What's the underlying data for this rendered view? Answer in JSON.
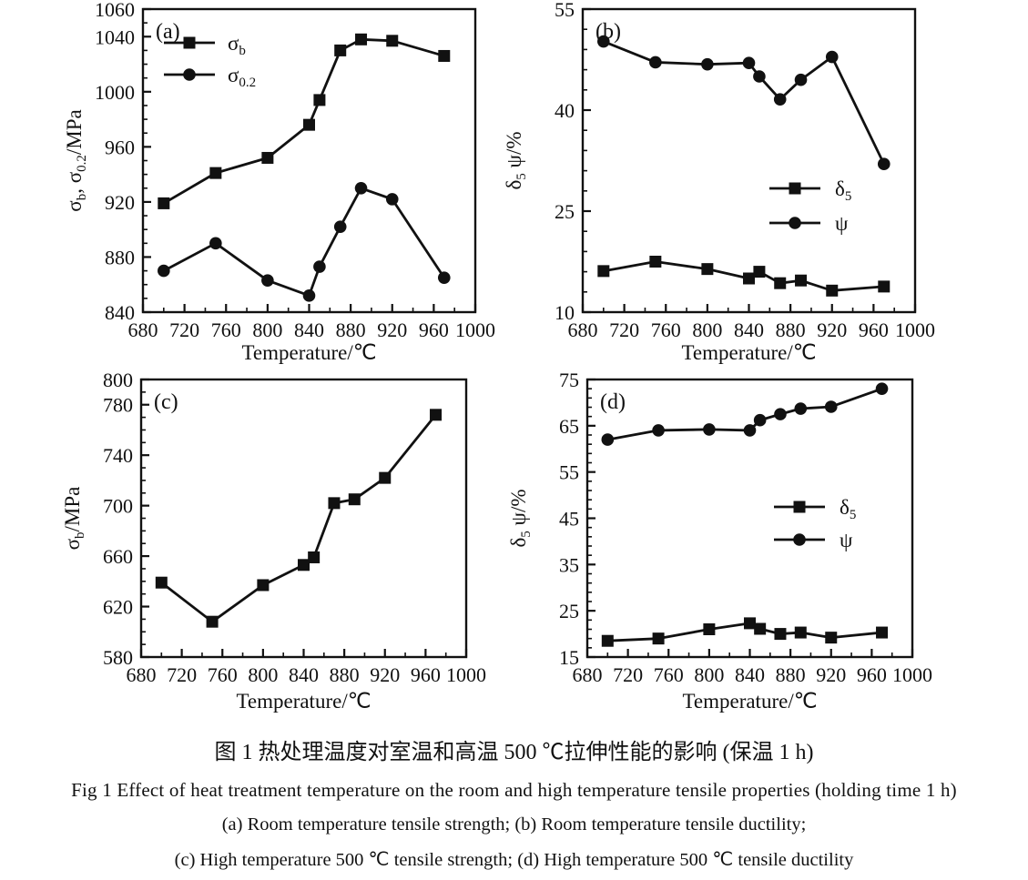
{
  "colors": {
    "ink": "#111111",
    "background": "#ffffff"
  },
  "caption": {
    "zh": "图 1  热处理温度对室温和高温 500 ℃拉伸性能的影响 (保温 1 h)",
    "en": "Fig 1   Effect of heat treatment temperature on the room and high temperature tensile properties (holding time 1 h)",
    "line_ab": "(a) Room temperature tensile strength;  (b) Room temperature tensile ductility;",
    "line_cd": "(c) High temperature 500 ℃ tensile strength;  (d) High temperature 500 ℃ tensile ductility"
  },
  "chart_data": [
    {
      "id": "a",
      "type": "line",
      "panel_label": "(a)",
      "xlabel": "Temperature/℃",
      "ylabel": "σb, σ0.2/MPa",
      "ylabel_parts": [
        {
          "t": "σ"
        },
        {
          "s": "b"
        },
        {
          "t": ", σ"
        },
        {
          "s": "0.2"
        },
        {
          "t": "/MPa"
        }
      ],
      "xlim": [
        680,
        1000
      ],
      "ylim": [
        840,
        1060
      ],
      "xticks": [
        680,
        720,
        760,
        800,
        840,
        880,
        920,
        960,
        1000
      ],
      "yticks": [
        840,
        880,
        920,
        960,
        1000,
        1040,
        1060
      ],
      "x_minor_step": 20,
      "y_minor_step": 10,
      "x": [
        700,
        750,
        800,
        840,
        850,
        870,
        890,
        920,
        970
      ],
      "series": [
        {
          "name": "σb",
          "name_parts": [
            {
              "t": "σ"
            },
            {
              "s": "b"
            }
          ],
          "marker": "square",
          "values": [
            919,
            941,
            952,
            976,
            994,
            1030,
            1038,
            1037,
            1026
          ]
        },
        {
          "name": "σ0.2",
          "name_parts": [
            {
              "t": "σ"
            },
            {
              "s": "0.2"
            }
          ],
          "marker": "circle",
          "values": [
            870,
            890,
            863,
            852,
            873,
            902,
            930,
            922,
            865
          ]
        }
      ],
      "legend": true
    },
    {
      "id": "b",
      "type": "line",
      "panel_label": "(b)",
      "xlabel": "Temperature/℃",
      "ylabel": "δ5 ψ/%",
      "ylabel_parts": [
        {
          "t": "δ"
        },
        {
          "s": "5"
        },
        {
          "t": " ψ/%"
        }
      ],
      "xlim": [
        680,
        1000
      ],
      "ylim": [
        10,
        55
      ],
      "xticks": [
        680,
        720,
        760,
        800,
        840,
        880,
        920,
        960,
        1000
      ],
      "yticks": [
        10,
        25,
        40,
        55
      ],
      "x_minor_step": 20,
      "y_minor_step": 3,
      "x": [
        700,
        750,
        800,
        840,
        850,
        870,
        890,
        920,
        970
      ],
      "series": [
        {
          "name": "δ5",
          "name_parts": [
            {
              "t": "δ"
            },
            {
              "s": "5"
            }
          ],
          "marker": "square",
          "values": [
            16.1,
            17.5,
            16.4,
            15.0,
            16.0,
            14.3,
            14.7,
            13.2,
            13.8
          ]
        },
        {
          "name": "ψ",
          "name_parts": [
            {
              "t": "ψ"
            }
          ],
          "marker": "circle",
          "values": [
            50.2,
            47.1,
            46.8,
            47.0,
            45.0,
            41.6,
            44.5,
            47.9,
            32.0
          ]
        }
      ],
      "legend": true
    },
    {
      "id": "c",
      "type": "line",
      "panel_label": "(c)",
      "xlabel": "Temperature/℃",
      "ylabel": "σb/MPa",
      "ylabel_parts": [
        {
          "t": "σ"
        },
        {
          "s": "b"
        },
        {
          "t": "/MPa"
        }
      ],
      "xlim": [
        680,
        1000
      ],
      "ylim": [
        580,
        800
      ],
      "xticks": [
        680,
        720,
        760,
        800,
        840,
        880,
        920,
        960,
        1000
      ],
      "yticks": [
        580,
        620,
        660,
        700,
        740,
        780,
        800
      ],
      "x_minor_step": 20,
      "y_minor_step": 10,
      "x": [
        700,
        750,
        800,
        840,
        850,
        870,
        890,
        920,
        970
      ],
      "series": [
        {
          "name": "σb",
          "name_parts": [
            {
              "t": "σ"
            },
            {
              "s": "b"
            }
          ],
          "marker": "square",
          "values": [
            639,
            608,
            637,
            653,
            659,
            702,
            705,
            722,
            772
          ]
        }
      ],
      "legend": false
    },
    {
      "id": "d",
      "type": "line",
      "panel_label": "(d)",
      "xlabel": "Temperature/℃",
      "ylabel": "δ5 ψ/%",
      "ylabel_parts": [
        {
          "t": "δ"
        },
        {
          "s": "5"
        },
        {
          "t": " ψ/%"
        }
      ],
      "xlim": [
        680,
        1000
      ],
      "ylim": [
        15,
        75
      ],
      "xticks": [
        680,
        720,
        760,
        800,
        840,
        880,
        920,
        960,
        1000
      ],
      "yticks": [
        15,
        25,
        35,
        45,
        55,
        65,
        75
      ],
      "x_minor_step": 20,
      "y_minor_step": 2,
      "x": [
        700,
        750,
        800,
        840,
        850,
        870,
        890,
        920,
        970
      ],
      "series": [
        {
          "name": "δ5",
          "name_parts": [
            {
              "t": "δ"
            },
            {
              "s": "5"
            }
          ],
          "marker": "square",
          "values": [
            18.5,
            19.0,
            21.0,
            22.3,
            21.1,
            20.0,
            20.3,
            19.2,
            20.3
          ]
        },
        {
          "name": "ψ",
          "name_parts": [
            {
              "t": "ψ"
            }
          ],
          "marker": "circle",
          "values": [
            62.0,
            64.0,
            64.2,
            64.0,
            66.2,
            67.5,
            68.7,
            69.1,
            73.0
          ]
        }
      ],
      "legend": true
    }
  ]
}
